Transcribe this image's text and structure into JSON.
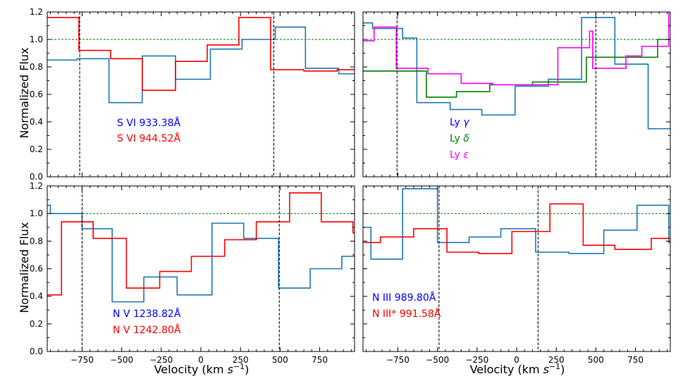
{
  "figure": {
    "ylabel": "Normalized Flux",
    "xlabel_main": "Velocity (km ",
    "xlabel_unit": "s",
    "xlabel_exp": "−1",
    "xlabel_close": ")"
  },
  "chart_data": [
    {
      "id": "tl",
      "type": "line",
      "xlim": [
        -970,
        970
      ],
      "ylim": [
        0,
        1.2
      ],
      "yticks": [
        "0.0",
        "0.2",
        "0.4",
        "0.6",
        "0.8",
        "1.0",
        "1.2"
      ],
      "yvals": [
        0,
        0.2,
        0.4,
        0.6,
        0.8,
        1.0,
        1.2
      ],
      "xticks": [],
      "continuum": 1.0,
      "vlines": [
        -765,
        460
      ],
      "series": [
        {
          "name": "S VI 933.38Å",
          "color": "#1f77b4",
          "steps": [
            [
              -970,
              0.85
            ],
            [
              -780,
              0.86
            ],
            [
              -580,
              0.54
            ],
            [
              -370,
              0.88
            ],
            [
              -160,
              0.71
            ],
            [
              60,
              0.93
            ],
            [
              260,
              1.0
            ],
            [
              470,
              1.09
            ],
            [
              660,
              0.79
            ],
            [
              870,
              0.75
            ],
            [
              970,
              0.75
            ]
          ]
        },
        {
          "name": "S VI 944.52Å",
          "color": "#ff0000",
          "steps": [
            [
              -970,
              1.16
            ],
            [
              -770,
              0.92
            ],
            [
              -570,
              0.86
            ],
            [
              -370,
              0.63
            ],
            [
              -160,
              0.84
            ],
            [
              40,
              0.96
            ],
            [
              240,
              1.16
            ],
            [
              440,
              0.78
            ],
            [
              650,
              0.77
            ],
            [
              860,
              0.78
            ],
            [
              970,
              0.78
            ]
          ]
        }
      ],
      "labels": [
        {
          "text": "S VI 933.38Å",
          "color": "#0000ff"
        },
        {
          "text": "S VI 944.52Å",
          "color": "#ff0000"
        }
      ]
    },
    {
      "id": "tr",
      "type": "line",
      "xlim": [
        -970,
        970
      ],
      "ylim": [
        0,
        1.2
      ],
      "yticks": [],
      "yvals": [
        0,
        0.2,
        0.4,
        0.6,
        0.8,
        1.0,
        1.2
      ],
      "xticks": [],
      "continuum": 1.0,
      "vlines": [
        -755,
        500
      ],
      "series": [
        {
          "name": "Ly γ",
          "color": "#1f77b4",
          "steps": [
            [
              -970,
              1.12
            ],
            [
              -910,
              1.08
            ],
            [
              -720,
              1.01
            ],
            [
              -630,
              0.54
            ],
            [
              -420,
              0.49
            ],
            [
              -220,
              0.45
            ],
            [
              -10,
              0.66
            ],
            [
              200,
              0.71
            ],
            [
              410,
              1.16
            ],
            [
              620,
              0.82
            ],
            [
              830,
              0.35
            ],
            [
              970,
              0.35
            ]
          ]
        },
        {
          "name": "Ly δ",
          "color": "#008000",
          "steps": [
            [
              -970,
              0.77
            ],
            [
              -620,
              0.77
            ],
            [
              -570,
              0.58
            ],
            [
              -380,
              0.62
            ],
            [
              -170,
              0.67
            ],
            [
              -130,
              0.67
            ],
            [
              100,
              0.69
            ],
            [
              220,
              0.69
            ],
            [
              440,
              0.87
            ],
            [
              630,
              0.87
            ],
            [
              890,
              1.0
            ],
            [
              970,
              1.0
            ]
          ]
        },
        {
          "name": "Ly ε",
          "color": "#ff00ff",
          "steps": [
            [
              -970,
              0.99
            ],
            [
              -900,
              1.09
            ],
            [
              -760,
              0.79
            ],
            [
              -560,
              0.75
            ],
            [
              -350,
              0.68
            ],
            [
              -150,
              0.67
            ],
            [
              60,
              0.67
            ],
            [
              260,
              0.94
            ],
            [
              460,
              1.06
            ],
            [
              480,
              0.79
            ],
            [
              690,
              0.88
            ],
            [
              790,
              0.95
            ],
            [
              960,
              1.25
            ],
            [
              970,
              1.25
            ]
          ]
        }
      ],
      "labels": [
        {
          "text": "Ly γ",
          "color": "#0000ff"
        },
        {
          "text": "Ly δ",
          "color": "#008000"
        },
        {
          "text": "Ly ε",
          "color": "#ff00ff"
        }
      ]
    },
    {
      "id": "bl",
      "type": "line",
      "xlim": [
        -970,
        970
      ],
      "ylim": [
        0,
        1.2
      ],
      "yticks": [
        "0.0",
        "0.2",
        "0.4",
        "0.6",
        "0.8",
        "1.0",
        "1.2"
      ],
      "yvals": [
        0,
        0.2,
        0.4,
        0.6,
        0.8,
        1.0,
        1.2
      ],
      "xticks": [
        "−750",
        "−500",
        "−250",
        "0",
        "250",
        "500",
        "750"
      ],
      "xvals": [
        -750,
        -500,
        -250,
        0,
        250,
        500,
        750
      ],
      "continuum": 1.0,
      "vlines": [
        -750,
        495
      ],
      "series": [
        {
          "name": "N V 1238.82Å",
          "color": "#1f77b4",
          "steps": [
            [
              -970,
              1.06
            ],
            [
              -950,
              1.0
            ],
            [
              -750,
              0.89
            ],
            [
              -560,
              0.36
            ],
            [
              -360,
              0.54
            ],
            [
              -150,
              0.41
            ],
            [
              70,
              0.93
            ],
            [
              270,
              0.82
            ],
            [
              490,
              0.46
            ],
            [
              690,
              0.6
            ],
            [
              890,
              0.69
            ],
            [
              970,
              0.69
            ]
          ]
        },
        {
          "name": "N V 1242.80Å",
          "color": "#ff0000",
          "steps": [
            [
              -970,
              0.41
            ],
            [
              -880,
              0.94
            ],
            [
              -680,
              0.82
            ],
            [
              -470,
              0.46
            ],
            [
              -260,
              0.58
            ],
            [
              -60,
              0.69
            ],
            [
              150,
              0.81
            ],
            [
              350,
              0.94
            ],
            [
              560,
              1.15
            ],
            [
              760,
              0.94
            ],
            [
              960,
              0.86
            ],
            [
              970,
              0.86
            ]
          ]
        }
      ],
      "labels": [
        {
          "text": "N V 1238.82Å",
          "color": "#0000ff"
        },
        {
          "text": "N V 1242.80Å",
          "color": "#ff0000"
        }
      ]
    },
    {
      "id": "br",
      "type": "line",
      "xlim": [
        -970,
        970
      ],
      "ylim": [
        0,
        1.2
      ],
      "yticks": [],
      "yvals": [
        0,
        0.2,
        0.4,
        0.6,
        0.8,
        1.0,
        1.2
      ],
      "xticks": [
        "−750",
        "−500",
        "−250",
        "0",
        "250",
        "500",
        "750"
      ],
      "xvals": [
        -750,
        -500,
        -250,
        0,
        250,
        500,
        750
      ],
      "continuum": 1.0,
      "vlines": [
        -490,
        135
      ],
      "series": [
        {
          "name": "N III 989.80Å",
          "color": "#1f77b4",
          "steps": [
            [
              -970,
              0.9
            ],
            [
              -920,
              0.67
            ],
            [
              -720,
              1.18
            ],
            [
              -500,
              0.79
            ],
            [
              -300,
              0.83
            ],
            [
              -100,
              0.89
            ],
            [
              120,
              0.72
            ],
            [
              330,
              0.71
            ],
            [
              550,
              0.88
            ],
            [
              760,
              1.06
            ],
            [
              960,
              0.79
            ],
            [
              970,
              0.79
            ]
          ]
        },
        {
          "name": "N III* 991.58Å",
          "color": "#ff0000",
          "steps": [
            [
              -970,
              0.79
            ],
            [
              -860,
              0.83
            ],
            [
              -650,
              0.89
            ],
            [
              -440,
              0.72
            ],
            [
              -240,
              0.71
            ],
            [
              -30,
              0.87
            ],
            [
              210,
              1.07
            ],
            [
              420,
              0.77
            ],
            [
              620,
              0.74
            ],
            [
              850,
              0.82
            ],
            [
              970,
              0.82
            ]
          ]
        }
      ],
      "labels": [
        {
          "text": "N III 989.80Å",
          "color": "#0000ff"
        },
        {
          "text": "N III* 991.58Å",
          "color": "#ff0000"
        }
      ]
    }
  ]
}
